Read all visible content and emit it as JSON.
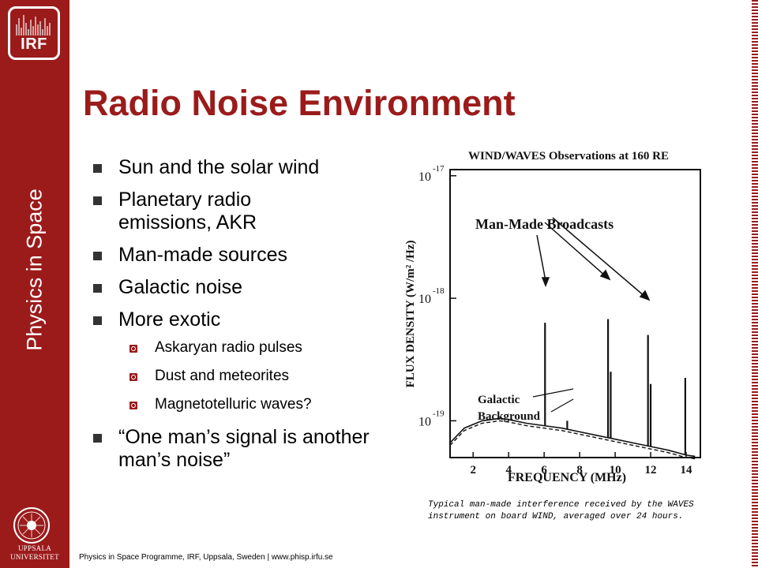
{
  "sidebar": {
    "logo_text": "IRF",
    "vertical_title": "Physics in Space",
    "university_line1": "UPPSALA",
    "university_line2": "UNIVERSITET"
  },
  "slide": {
    "title": "Radio Noise Environment",
    "bullets": [
      "Sun and the solar wind",
      "Planetary radio emissions, AKR",
      "Man-made sources",
      "Galactic noise",
      "More exotic",
      "“One man’s signal is another man’s noise”"
    ],
    "sub_bullets": [
      "Askaryan radio pulses",
      "Dust and meteorites",
      "Magnetotelluric waves?"
    ],
    "caption": "Typical man-made interference received by the WAVES instrument on board WIND, averaged over 24 hours.",
    "footer": "Physics in Space Programme, IRF, Uppsala, Sweden | www.phisp.irfu.se"
  },
  "chart_data": {
    "type": "line",
    "title": "WIND/WAVES Observations at 160 RE",
    "xlabel": "FREQUENCY (MHz)",
    "ylabel": "FLUX DENSITY (W/m² /Hz)",
    "x_ticks": [
      "2",
      "4",
      "6",
      "8",
      "10",
      "12",
      "14"
    ],
    "y_ticks": [
      "10^-17",
      "10^-18",
      "10^-19"
    ],
    "y_tick_exponents": [
      "-17",
      "-18",
      "-19"
    ],
    "xlim": [
      0.7,
      14.8
    ],
    "ylim_log10": [
      -19.3,
      -16.95
    ],
    "annotations": [
      "Man-Made Broadcasts",
      "Galactic Background"
    ],
    "series": [
      {
        "x": [
          0.7,
          1.5,
          2.5,
          3.5,
          4.0,
          5.0,
          6.0,
          7.0,
          8.0,
          9.0,
          10.0,
          11.0,
          12.0,
          13.0,
          14.0,
          14.5
        ],
        "y_log10": [
          -19.18,
          -19.06,
          -19.0,
          -18.98,
          -18.99,
          -19.02,
          -19.04,
          -19.06,
          -19.09,
          -19.12,
          -19.15,
          -19.18,
          -19.21,
          -19.24,
          -19.28,
          -19.29
        ]
      },
      {
        "x": [
          0.7,
          1.5,
          2.5,
          3.5,
          4.0,
          5.0,
          6.0,
          7.0,
          8.0,
          9.0,
          10.0,
          11.0,
          12.0,
          13.0,
          14.0,
          14.5
        ],
        "y_log10": [
          -19.2,
          -19.08,
          -19.02,
          -19.0,
          -19.01,
          -19.04,
          -19.06,
          -19.08,
          -19.11,
          -19.14,
          -19.17,
          -19.2,
          -19.23,
          -19.26,
          -19.3,
          -19.31
        ]
      }
    ],
    "spikes": [
      {
        "x": 6.05,
        "y_log10": -18.2
      },
      {
        "x": 7.3,
        "y_log10": -19.0
      },
      {
        "x": 9.6,
        "y_log10": -18.17
      },
      {
        "x": 9.75,
        "y_log10": -18.6
      },
      {
        "x": 11.85,
        "y_log10": -18.3
      },
      {
        "x": 12.0,
        "y_log10": -18.7
      },
      {
        "x": 13.95,
        "y_log10": -18.65
      }
    ]
  }
}
